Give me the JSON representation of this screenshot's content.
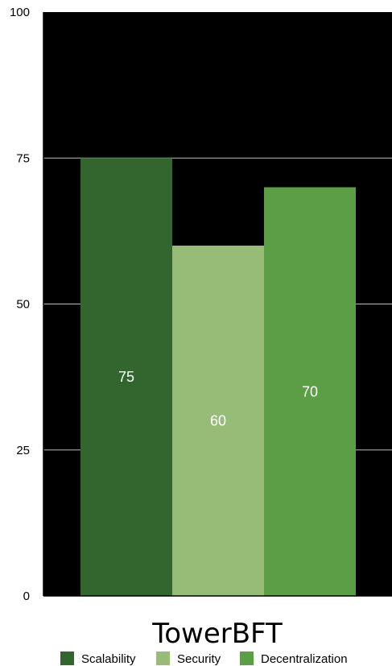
{
  "chart_data": {
    "type": "bar",
    "title": "TowerBFT",
    "xlabel": "",
    "ylabel": "",
    "ylim": [
      0,
      100
    ],
    "yticks": [
      0,
      25,
      50,
      75,
      100
    ],
    "ytick_labels": [
      "0",
      "25",
      "50",
      "75",
      "100"
    ],
    "grid": true,
    "legend_position": "bottom",
    "background": "#000000",
    "series": [
      {
        "name": "Scalability",
        "value": 75,
        "label": "75",
        "color": "#33662f"
      },
      {
        "name": "Security",
        "value": 60,
        "label": "60",
        "color": "#96bc78"
      },
      {
        "name": "Decentralization",
        "value": 70,
        "label": "70",
        "color": "#5c9e46"
      }
    ]
  }
}
